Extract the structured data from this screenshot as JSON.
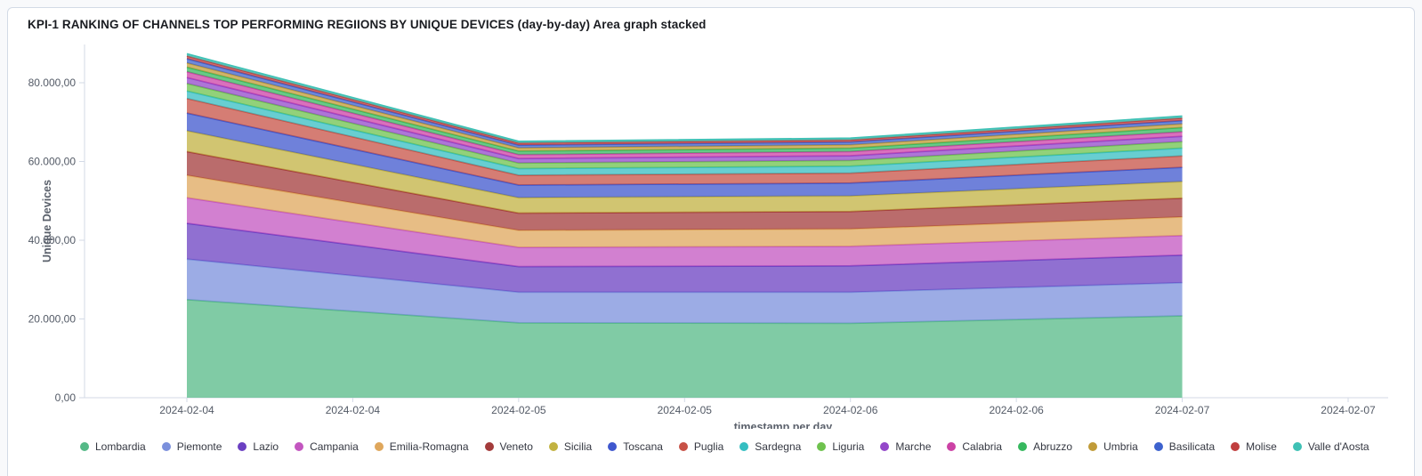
{
  "panel": {
    "title": "KPI-1 RANKING OF CHANNELS TOP PERFORMING REGIIONS BY UNIQUE DEVICES (day-by-day) Area graph stacked"
  },
  "chart_data": {
    "type": "area",
    "stacked": true,
    "title": "KPI-1 RANKING OF CHANNELS TOP PERFORMING REGIIONS BY UNIQUE DEVICES (day-by-day) Area graph stacked",
    "xlabel": "timestamp per day",
    "ylabel": "Unique Devices",
    "legend_position": "bottom",
    "grid": false,
    "ylim": [
      0,
      88600
    ],
    "x": [
      "2024-02-04",
      "2024-02-05",
      "2024-02-06",
      "2024-02-07"
    ],
    "x_axis_tick_labels": [
      "2024-02-04",
      "2024-02-04",
      "2024-02-05",
      "2024-02-05",
      "2024-02-06",
      "2024-02-06",
      "2024-02-07",
      "2024-02-07"
    ],
    "y_axis_ticks": {
      "values": [
        0,
        20000,
        40000,
        60000,
        80000
      ],
      "labels": [
        "0,00",
        "20.000,00",
        "40.000,00",
        "60.000,00",
        "80.000,00"
      ]
    },
    "series": [
      {
        "name": "Lombardia",
        "color": "#55B987",
        "values": [
          24900,
          19000,
          18900,
          20800
        ]
      },
      {
        "name": "Piemonte",
        "color": "#7B90DC",
        "values": [
          10300,
          7800,
          7900,
          8400
        ]
      },
      {
        "name": "Lazio",
        "color": "#6B40C2",
        "values": [
          9100,
          6500,
          6700,
          7000
        ]
      },
      {
        "name": "Campania",
        "color": "#C356C0",
        "values": [
          6500,
          4900,
          4950,
          5000
        ]
      },
      {
        "name": "Emilia-Romagna",
        "color": "#DFA75C",
        "values": [
          5700,
          4300,
          4400,
          4700
        ]
      },
      {
        "name": "Veneto",
        "color": "#A33B3B",
        "values": [
          6000,
          4400,
          4450,
          4800
        ]
      },
      {
        "name": "Sicilia",
        "color": "#C2B241",
        "values": [
          5300,
          3900,
          3950,
          4200
        ]
      },
      {
        "name": "Toscana",
        "color": "#3F57CE",
        "values": [
          4500,
          3200,
          3250,
          3600
        ]
      },
      {
        "name": "Puglia",
        "color": "#C75146",
        "values": [
          3700,
          2500,
          2550,
          2900
        ]
      },
      {
        "name": "Sardegna",
        "color": "#35BEC1",
        "values": [
          1900,
          1700,
          1750,
          2000
        ]
      },
      {
        "name": "Liguria",
        "color": "#6EC24E",
        "values": [
          1900,
          1400,
          1450,
          1650
        ]
      },
      {
        "name": "Marche",
        "color": "#9347C9",
        "values": [
          1500,
          1150,
          1200,
          1350
        ]
      },
      {
        "name": "Calabria",
        "color": "#CC42A5",
        "values": [
          1500,
          1000,
          1050,
          1150
        ]
      },
      {
        "name": "Abruzzo",
        "color": "#36B85E",
        "values": [
          1150,
          900,
          900,
          1050
        ]
      },
      {
        "name": "Umbria",
        "color": "#C09B38",
        "values": [
          1100,
          800,
          820,
          950
        ]
      },
      {
        "name": "Basilicata",
        "color": "#3D62CE",
        "values": [
          1050,
          700,
          720,
          830
        ]
      },
      {
        "name": "Molise",
        "color": "#C03E3E",
        "values": [
          700,
          550,
          560,
          650
        ]
      },
      {
        "name": "Valle d'Aosta",
        "color": "#3FC1B5",
        "values": [
          550,
          400,
          420,
          500
        ]
      }
    ]
  }
}
